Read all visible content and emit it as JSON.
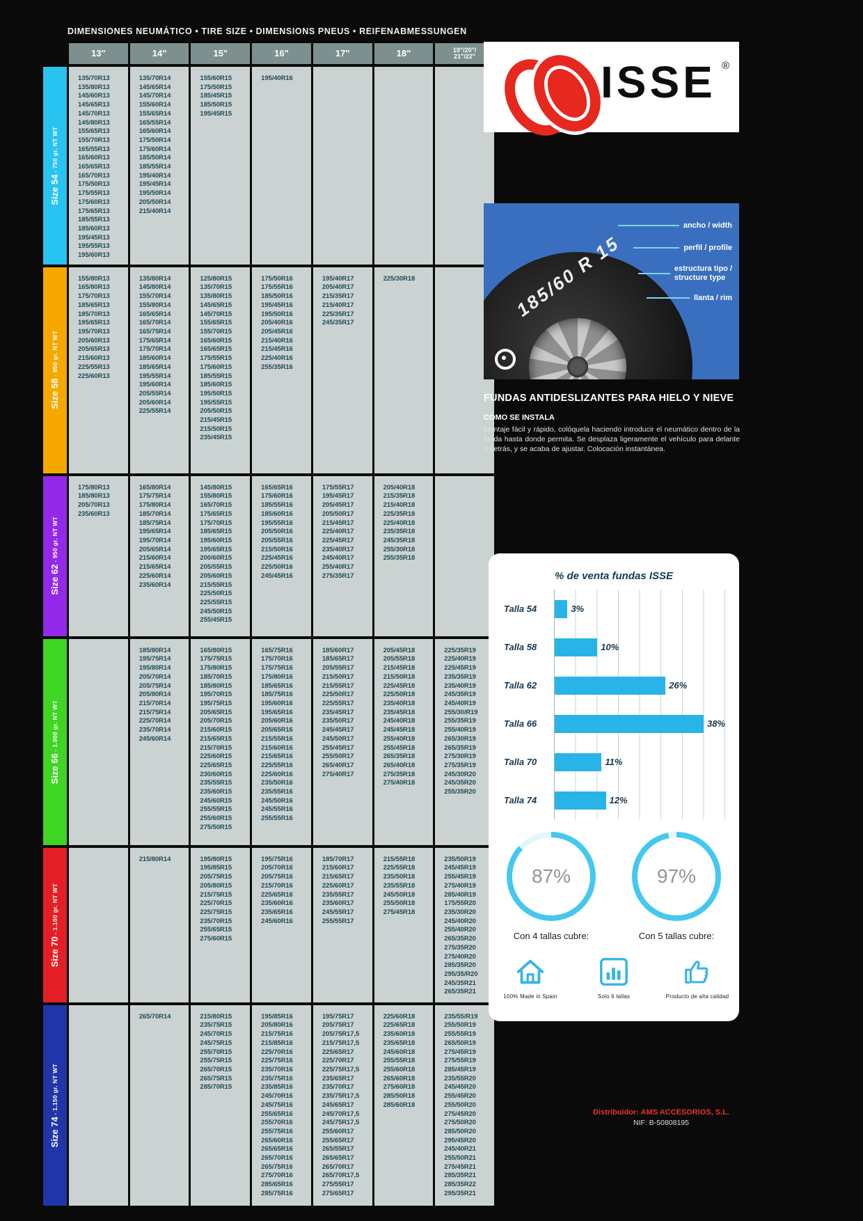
{
  "header": {
    "title": "DIMENSIONES NEUMÁTICO • TIRE SIZE • DIMENSIONS PNEUS • REIFENABMESSUNGEN"
  },
  "table": {
    "columns": [
      "13\"",
      "14\"",
      "15\"",
      "16\"",
      "17\"",
      "18\"",
      "19\"/20\"/\n21\"/22\""
    ],
    "sizes": [
      {
        "label": "Size 54",
        "weight": "750 gr. NT WT",
        "color": "#29c3f2",
        "cells": [
          [
            "135/70R13",
            "135/80R13",
            "145/60R13",
            "145/65R13",
            "145/70R13",
            "145/80R13",
            "155/65R13",
            "155/70R13",
            "165/55R13",
            "165/60R13",
            "165/65R13",
            "165/70R13",
            "175/50R13",
            "175/55R13",
            "175/60R13",
            "175/65R13",
            "185/55R13",
            "185/60R13",
            "195/45R13",
            "195/55R13",
            "195/60R13"
          ],
          [
            "135/70R14",
            "145/65R14",
            "145/70R14",
            "155/60R14",
            "155/65R14",
            "165/55R14",
            "165/60R14",
            "175/50R14",
            "175/60R14",
            "185/50R14",
            "185/55R14",
            "195/40R14",
            "195/45R14",
            "195/50R14",
            "205/50R14",
            "215/40R14"
          ],
          [
            "155/60R15",
            "175/50R15",
            "185/45R15",
            "185/50R15",
            "195/45R15"
          ],
          [
            "195/40R16"
          ],
          [],
          [],
          []
        ]
      },
      {
        "label": "Size 58",
        "weight": "850 gr. NT WT",
        "color": "#f6a800",
        "cells": [
          [
            "155/80R13",
            "165/80R13",
            "175/70R13",
            "185/65R13",
            "185/70R13",
            "195/65R13",
            "195/70R13",
            "205/60R13",
            "205/65R13",
            "215/60R13",
            "225/55R13",
            "225/60R13"
          ],
          [
            "135/80R14",
            "145/80R14",
            "155/70R14",
            "155/80R14",
            "165/65R14",
            "165/70R14",
            "165/75R14",
            "175/65R14",
            "175/70R14",
            "185/60R14",
            "185/65R14",
            "195/55R14",
            "195/60R14",
            "205/55R14",
            "205/60R14",
            "225/55R14"
          ],
          [
            "125/80R15",
            "135/70R15",
            "135/80R15",
            "145/65R15",
            "145/70R15",
            "155/65R15",
            "155/70R15",
            "165/60R15",
            "165/65R15",
            "175/55R15",
            "175/60R15",
            "185/55R15",
            "185/60R15",
            "195/50R15",
            "195/55R15",
            "205/50R15",
            "215/45R15",
            "215/50R15",
            "235/45R15"
          ],
          [
            "175/50R16",
            "175/55R16",
            "185/50R16",
            "195/45R16",
            "195/50R16",
            "205/40R16",
            "205/45R16",
            "215/40R16",
            "215/45R16",
            "225/40R16",
            "255/35R16"
          ],
          [
            "195/40R17",
            "205/40R17",
            "215/35R17",
            "215/40R17",
            "225/35R17",
            "245/35R17"
          ],
          [
            "225/30R18"
          ],
          []
        ]
      },
      {
        "label": "Size 62",
        "weight": "950 gr. NT WT",
        "color": "#9229e8",
        "cells": [
          [
            "175/80R13",
            "185/80R13",
            "205/70R13",
            "235/60R13"
          ],
          [
            "165/80R14",
            "175/75R14",
            "175/80R14",
            "185/70R14",
            "185/75R14",
            "195/65R14",
            "195/70R14",
            "205/65R14",
            "215/60R14",
            "215/65R14",
            "225/60R14",
            "235/60R14"
          ],
          [
            "145/80R15",
            "155/80R15",
            "165/70R15",
            "175/65R15",
            "175/70R15",
            "185/65R15",
            "195/60R15",
            "195/65R15",
            "200/60R15",
            "205/55R15",
            "205/60R15",
            "215/55R15",
            "225/50R15",
            "225/55R15",
            "245/50R15",
            "255/45R15"
          ],
          [
            "165/65R16",
            "175/60R16",
            "185/55R16",
            "185/60R16",
            "195/55R16",
            "205/50R16",
            "205/55R16",
            "215/50R16",
            "225/45R16",
            "225/50R16",
            "245/45R16"
          ],
          [
            "175/55R17",
            "195/45R17",
            "205/45R17",
            "205/50R17",
            "215/45R17",
            "225/40R17",
            "225/45R17",
            "235/40R17",
            "245/40R17",
            "255/40R17",
            "275/35R17"
          ],
          [
            "205/40R18",
            "215/35R18",
            "215/40R18",
            "225/35R18",
            "225/40R18",
            "235/35R18",
            "245/35R18",
            "255/30R18",
            "255/35R18"
          ],
          []
        ]
      },
      {
        "label": "Size 66",
        "weight": "1.000 gr. NT WT",
        "color": "#3fd523",
        "cells": [
          [],
          [
            "185/80R14",
            "195/75R14",
            "195/80R14",
            "205/70R14",
            "205/75R14",
            "205/80R14",
            "215/70R14",
            "215/75R14",
            "225/70R14",
            "235/70R14",
            "245/60R14"
          ],
          [
            "165/80R15",
            "175/75R15",
            "175/80R15",
            "185/70R15",
            "185/80R15",
            "195/70R15",
            "195/75R15",
            "205/65R15",
            "205/70R15",
            "215/60R15",
            "215/65R15",
            "215/70R15",
            "225/60R15",
            "225/65R15",
            "230/60R15",
            "235/55R15",
            "235/60R15",
            "245/60R15",
            "255/55R15",
            "255/60R15",
            "275/50R15"
          ],
          [
            "165/75R16",
            "175/70R16",
            "175/75R16",
            "175/80R16",
            "185/65R16",
            "185/75R16",
            "195/60R16",
            "195/65R16",
            "205/60R16",
            "205/65R16",
            "215/55R16",
            "215/60R16",
            "215/65R16",
            "225/55R16",
            "225/60R16",
            "235/50R16",
            "235/55R16",
            "245/50R16",
            "245/55R16",
            "255/55R16"
          ],
          [
            "185/60R17",
            "185/65R17",
            "205/55R17",
            "215/50R17",
            "215/55R17",
            "225/50R17",
            "225/55R17",
            "235/45R17",
            "235/50R17",
            "245/45R17",
            "245/50R17",
            "255/45R17",
            "255/50R17",
            "265/40R17",
            "275/40R17"
          ],
          [
            "205/45R18",
            "205/55R18",
            "215/45R18",
            "215/50R18",
            "225/45R18",
            "225/50R18",
            "235/40R18",
            "235/45R18",
            "245/40R18",
            "245/45R18",
            "255/40R18",
            "255/45R18",
            "265/35R18",
            "265/40R18",
            "275/35R18",
            "275/40R18"
          ],
          [
            "225/35R19",
            "225/40R19",
            "225/45R19",
            "235/35R19",
            "235/40R19",
            "245/35R19",
            "245/40R19",
            "255/30/R19",
            "255/35R19",
            "255/40R19",
            "265/30R19",
            "265/35R19",
            "275/30R19",
            "275/35R19",
            "245/30R20",
            "245/35R20",
            "255/35R20"
          ]
        ]
      },
      {
        "label": "Size 70",
        "weight": "1.100 gr. NT WT",
        "color": "#e41e25",
        "cells": [
          [],
          [
            "215/80R14"
          ],
          [
            "195/80R15",
            "195/85R15",
            "205/75R15",
            "205/80R15",
            "215/75R15",
            "225/70R15",
            "225/75R15",
            "235/70R15",
            "255/65R15",
            "275/60R15"
          ],
          [
            "195/75R16",
            "205/70R16",
            "205/75R16",
            "215/70R16",
            "225/65R16",
            "235/60R16",
            "235/65R16",
            "245/60R16"
          ],
          [
            "185/70R17",
            "215/60R17",
            "215/65R17",
            "225/60R17",
            "235/55R17",
            "235/60R17",
            "245/55R17",
            "255/55R17"
          ],
          [
            "215/55R18",
            "225/55R18",
            "235/50R18",
            "235/55R18",
            "245/50R18",
            "255/50R18",
            "275/45R18"
          ],
          [
            "235/50R19",
            "245/45R19",
            "255/45R19",
            "275/40R19",
            "285/40R19",
            "175/55R20",
            "235/30R20",
            "245/40R20",
            "255/40R20",
            "265/35R20",
            "275/35R20",
            "275/40R20",
            "285/35R20",
            "295/35/R20",
            "245/35R21",
            "265/35R21"
          ]
        ]
      },
      {
        "label": "Size 74",
        "weight": "1.150 gr. NT WT",
        "color": "#2036a8",
        "cells": [
          [],
          [
            "265/70R14"
          ],
          [
            "215/80R15",
            "235/75R15",
            "245/70R15",
            "245/75R15",
            "255/70R15",
            "255/75R15",
            "265/70R15",
            "265/75R15",
            "285/70R15"
          ],
          [
            "195/85R16",
            "205/80R16",
            "215/75R16",
            "215/85R16",
            "225/70R16",
            "225/75R16",
            "235/70R16",
            "235/75R16",
            "235/85R16",
            "245/70R16",
            "245/75R16",
            "255/65R16",
            "255/70R16",
            "255/75R16",
            "265/60R16",
            "265/65R16",
            "265/70R16",
            "265/75R16",
            "275/70R16",
            "285/65R16",
            "285/75R16"
          ],
          [
            "195/75R17",
            "205/75R17",
            "205/75R17,5",
            "215/75R17,5",
            "225/65R17",
            "225/70R17",
            "225/75R17,5",
            "235/65R17",
            "235/70R17",
            "235/75R17,5",
            "245/65R17",
            "245/70R17,5",
            "245/75R17,5",
            "255/60R17",
            "255/65R17",
            "265/55R17",
            "265/65R17",
            "265/70R17",
            "265/70R17,5",
            "275/55R17",
            "275/65R17"
          ],
          [
            "225/60R18",
            "225/65R18",
            "235/60R18",
            "235/65R18",
            "245/60R18",
            "255/55R18",
            "255/60R18",
            "265/60R18",
            "275/60R18",
            "285/50R18",
            "285/60R18"
          ],
          [
            "235/55/R19",
            "255/50R19",
            "255/55R19",
            "265/50R19",
            "275/45R19",
            "275/55R19",
            "285/45R19",
            "235/55R20",
            "245/45R20",
            "255/45R20",
            "255/50R20",
            "275/45R20",
            "275/50R20",
            "285/50R20",
            "295/45R20",
            "245/40R21",
            "255/50R21",
            "275/45R21",
            "285/35R21",
            "285/35R22",
            "295/35R21"
          ]
        ]
      }
    ]
  },
  "logo": {
    "text": "ISSE",
    "registered": "®",
    "brand_red": "#e6281e"
  },
  "tire_diagram": {
    "tire_text": "185/60 R 15",
    "labels": [
      "ancho / width",
      "perfil / profile",
      "estructura tipo /\nstructure type",
      "llanta / rim"
    ],
    "bg": "#3a6fc0"
  },
  "headline": {
    "text": "FUNDAS ANTIDESLIZANTES PARA HIELO Y NIEVE"
  },
  "install": {
    "title": "COMO SE INSTALA",
    "body": "Montaje fácil y rápido, colóquela haciendo introducir el neumático dentro de la funda hasta donde permita. Se desplaza ligeramente el vehículo para delante o detrás, y se acaba de ajustar. Colocación instantánea."
  },
  "chart_data": {
    "type": "bar",
    "orientation": "horizontal",
    "title": "% de venta fundas ISSE",
    "categories": [
      "Talla 54",
      "Talla 58",
      "Talla 62",
      "Talla 66",
      "Talla 70",
      "Talla 74"
    ],
    "values": [
      3,
      10,
      26,
      38,
      11,
      12
    ],
    "value_labels": [
      "3%",
      "10%",
      "26%",
      "38%",
      "11%",
      "12%"
    ],
    "xlim": [
      0,
      40
    ],
    "grid": true,
    "bar_color": "#29b4e8"
  },
  "coverage": [
    {
      "value": 87,
      "text": "87%",
      "label": "Con 4 tallas cubre:"
    },
    {
      "value": 97,
      "text": "97%",
      "label": "Con 5 tallas cubre:"
    }
  ],
  "badges": [
    {
      "icon": "house-icon",
      "label": "100%  Made in Spain"
    },
    {
      "icon": "bar-chart-icon",
      "label": "Solo 6 tallas"
    },
    {
      "icon": "thumbs-up-icon",
      "label": "Producto de alta calidad"
    }
  ],
  "distributor": {
    "line1": "Distribuidor: AMS ACCESORIOS, S.L.",
    "line2": "NIF: B-50808195"
  },
  "accent_cyan": "#35b4e8"
}
